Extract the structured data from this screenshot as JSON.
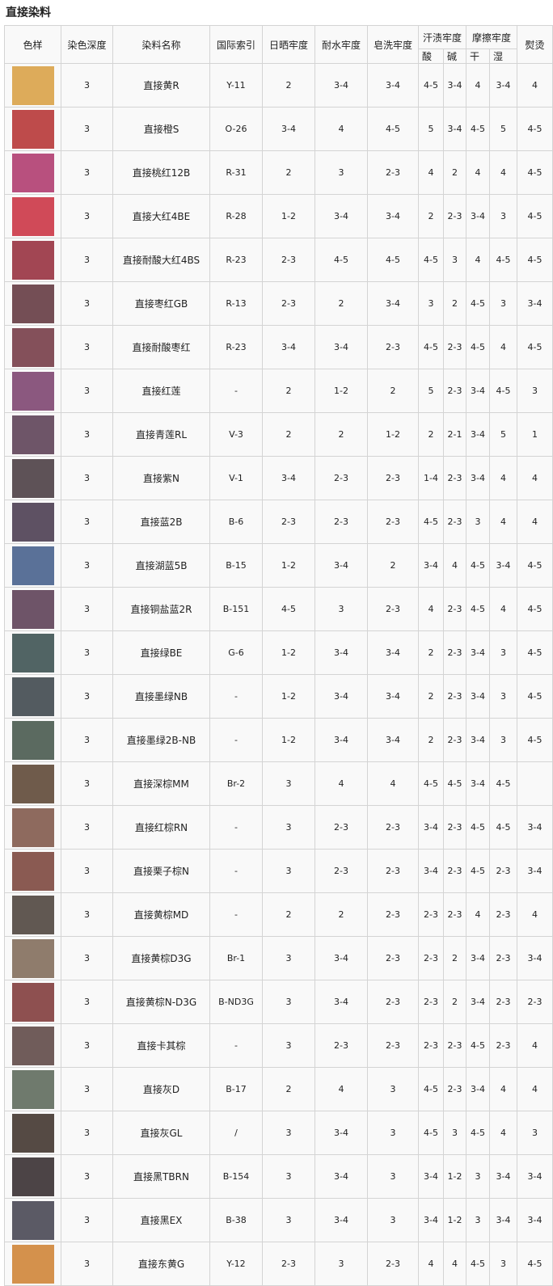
{
  "title": "直接染料",
  "headers": {
    "swatch": "色样",
    "depth": "染色深度",
    "name": "染料名称",
    "index": "国际索引",
    "light": "日晒牢度",
    "water": "耐水牢度",
    "soap": "皂洗牢度",
    "sweat": "汗渍牢度",
    "acid": "酸",
    "alkali": "碱",
    "rub": "摩擦牢度",
    "dry": "干",
    "wet": "湿",
    "iron": "熨烫"
  },
  "rows": [
    {
      "color": "#DDAB5A",
      "depth": "3",
      "name": "直接黄R",
      "index": "Y-11",
      "light": "2",
      "water": "3-4",
      "soap": "3-4",
      "acid": "4-5",
      "alkali": "3-4",
      "dry": "4",
      "wet": "3-4",
      "iron": "4"
    },
    {
      "color": "#BE4B4B",
      "depth": "3",
      "name": "直接橙S",
      "index": "O-26",
      "light": "3-4",
      "water": "4",
      "soap": "4-5",
      "acid": "5",
      "alkali": "3-4",
      "dry": "4-5",
      "wet": "5",
      "iron": "4-5"
    },
    {
      "color": "#B8507E",
      "depth": "3",
      "name": "直接桃红12B",
      "index": "R-31",
      "light": "2",
      "water": "3",
      "soap": "2-3",
      "acid": "4",
      "alkali": "2",
      "dry": "4",
      "wet": "4",
      "iron": "4-5"
    },
    {
      "color": "#D04A58",
      "depth": "3",
      "name": "直接大红4BE",
      "index": "R-28",
      "light": "1-2",
      "water": "3-4",
      "soap": "3-4",
      "acid": "2",
      "alkali": "2-3",
      "dry": "3-4",
      "wet": "3",
      "iron": "4-5"
    },
    {
      "color": "#A24653",
      "depth": "3",
      "name": "直接耐酸大红4BS",
      "index": "R-23",
      "light": "2-3",
      "water": "4-5",
      "soap": "4-5",
      "acid": "4-5",
      "alkali": "3",
      "dry": "4",
      "wet": "4-5",
      "iron": "4-5"
    },
    {
      "color": "#744E55",
      "depth": "3",
      "name": "直接枣红GB",
      "index": "R-13",
      "light": "2-3",
      "water": "2",
      "soap": "3-4",
      "acid": "3",
      "alkali": "2",
      "dry": "4-5",
      "wet": "3",
      "iron": "3-4"
    },
    {
      "color": "#84505A",
      "depth": "3",
      "name": "直接耐酸枣红",
      "index": "R-23",
      "light": "3-4",
      "water": "3-4",
      "soap": "2-3",
      "acid": "4-5",
      "alkali": "2-3",
      "dry": "4-5",
      "wet": "4",
      "iron": "4-5"
    },
    {
      "color": "#8B587F",
      "depth": "3",
      "name": "直接红莲",
      "index": "-",
      "light": "2",
      "water": "1-2",
      "soap": "2",
      "acid": "5",
      "alkali": "2-3",
      "dry": "3-4",
      "wet": "4-5",
      "iron": "3"
    },
    {
      "color": "#6E5568",
      "depth": "3",
      "name": "直接青莲RL",
      "index": "V-3",
      "light": "2",
      "water": "2",
      "soap": "1-2",
      "acid": "2",
      "alkali": "2-1",
      "dry": "3-4",
      "wet": "5",
      "iron": "1"
    },
    {
      "color": "#5E5257",
      "depth": "3",
      "name": "直接紫N",
      "index": "V-1",
      "light": "3-4",
      "water": "2-3",
      "soap": "2-3",
      "acid": "1-4",
      "alkali": "2-3",
      "dry": "3-4",
      "wet": "4",
      "iron": "4"
    },
    {
      "color": "#5E5163",
      "depth": "3",
      "name": "直接蓝2B",
      "index": "B-6",
      "light": "2-3",
      "water": "2-3",
      "soap": "2-3",
      "acid": "4-5",
      "alkali": "2-3",
      "dry": "3",
      "wet": "4",
      "iron": "4"
    },
    {
      "color": "#5A7198",
      "depth": "3",
      "name": "直接湖蓝5B",
      "index": "B-15",
      "light": "1-2",
      "water": "3-4",
      "soap": "2",
      "acid": "3-4",
      "alkali": "4",
      "dry": "4-5",
      "wet": "3-4",
      "iron": "4-5"
    },
    {
      "color": "#6E5468",
      "depth": "3",
      "name": "直接铜盐蓝2R",
      "index": "B-151",
      "light": "4-5",
      "water": "3",
      "soap": "2-3",
      "acid": "4",
      "alkali": "2-3",
      "dry": "4-5",
      "wet": "4",
      "iron": "4-5"
    },
    {
      "color": "#516464",
      "depth": "3",
      "name": "直接绿BE",
      "index": "G-6",
      "light": "1-2",
      "water": "3-4",
      "soap": "3-4",
      "acid": "2",
      "alkali": "2-3",
      "dry": "3-4",
      "wet": "3",
      "iron": "4-5"
    },
    {
      "color": "#535B60",
      "depth": "3",
      "name": "直接墨绿NB",
      "index": "-",
      "light": "1-2",
      "water": "3-4",
      "soap": "3-4",
      "acid": "2",
      "alkali": "2-3",
      "dry": "3-4",
      "wet": "3",
      "iron": "4-5"
    },
    {
      "color": "#5B6A60",
      "depth": "3",
      "name": "直接墨绿2B-NB",
      "index": "-",
      "light": "1-2",
      "water": "3-4",
      "soap": "3-4",
      "acid": "2",
      "alkali": "2-3",
      "dry": "3-4",
      "wet": "3",
      "iron": "4-5"
    },
    {
      "color": "#6F5B4B",
      "depth": "3",
      "name": "直接深棕MM",
      "index": "Br-2",
      "light": "3",
      "water": "4",
      "soap": "4",
      "acid": "4-5",
      "alkali": "4-5",
      "dry": "3-4",
      "wet": "4-5",
      "iron": ""
    },
    {
      "color": "#8E6A5E",
      "depth": "3",
      "name": "直接红棕RN",
      "index": "-",
      "light": "3",
      "water": "2-3",
      "soap": "2-3",
      "acid": "3-4",
      "alkali": "2-3",
      "dry": "4-5",
      "wet": "4-5",
      "iron": "3-4"
    },
    {
      "color": "#8A5A52",
      "depth": "3",
      "name": "直接栗子棕N",
      "index": "-",
      "light": "3",
      "water": "2-3",
      "soap": "2-3",
      "acid": "3-4",
      "alkali": "2-3",
      "dry": "4-5",
      "wet": "2-3",
      "iron": "3-4"
    },
    {
      "color": "#615852",
      "depth": "3",
      "name": "直接黄棕MD",
      "index": "-",
      "light": "2",
      "water": "2",
      "soap": "2-3",
      "acid": "2-3",
      "alkali": "2-3",
      "dry": "4",
      "wet": "2-3",
      "iron": "4"
    },
    {
      "color": "#8F7C6C",
      "depth": "3",
      "name": "直接黄棕D3G",
      "index": "Br-1",
      "light": "3",
      "water": "3-4",
      "soap": "2-3",
      "acid": "2-3",
      "alkali": "2",
      "dry": "3-4",
      "wet": "2-3",
      "iron": "3-4"
    },
    {
      "color": "#8E5050",
      "depth": "3",
      "name": "直接黄棕N-D3G",
      "index": "B-ND3G",
      "light": "3",
      "water": "3-4",
      "soap": "2-3",
      "acid": "2-3",
      "alkali": "2",
      "dry": "3-4",
      "wet": "2-3",
      "iron": "2-3"
    },
    {
      "color": "#705C5A",
      "depth": "3",
      "name": "直接卡其棕",
      "index": "-",
      "light": "3",
      "water": "2-3",
      "soap": "2-3",
      "acid": "2-3",
      "alkali": "2-3",
      "dry": "4-5",
      "wet": "2-3",
      "iron": "4"
    },
    {
      "color": "#6F7A6D",
      "depth": "3",
      "name": "直接灰D",
      "index": "B-17",
      "light": "2",
      "water": "4",
      "soap": "3",
      "acid": "4-5",
      "alkali": "2-3",
      "dry": "3-4",
      "wet": "4",
      "iron": "4"
    },
    {
      "color": "#554A44",
      "depth": "3",
      "name": "直接灰GL",
      "index": "/",
      "light": "3",
      "water": "3-4",
      "soap": "3",
      "acid": "4-5",
      "alkali": "3",
      "dry": "4-5",
      "wet": "4",
      "iron": "3"
    },
    {
      "color": "#4C4446",
      "depth": "3",
      "name": "直接黑TBRN",
      "index": "B-154",
      "light": "3",
      "water": "3-4",
      "soap": "3",
      "acid": "3-4",
      "alkali": "1-2",
      "dry": "3",
      "wet": "3-4",
      "iron": "3-4"
    },
    {
      "color": "#5B5A65",
      "depth": "3",
      "name": "直接黑EX",
      "index": "B-38",
      "light": "3",
      "water": "3-4",
      "soap": "3",
      "acid": "3-4",
      "alkali": "1-2",
      "dry": "3",
      "wet": "3-4",
      "iron": "3-4"
    },
    {
      "color": "#D4914C",
      "depth": "3",
      "name": "直接东黄G",
      "index": "Y-12",
      "light": "2-3",
      "water": "3",
      "soap": "2-3",
      "acid": "4",
      "alkali": "4",
      "dry": "4-5",
      "wet": "3",
      "iron": "4-5"
    }
  ]
}
